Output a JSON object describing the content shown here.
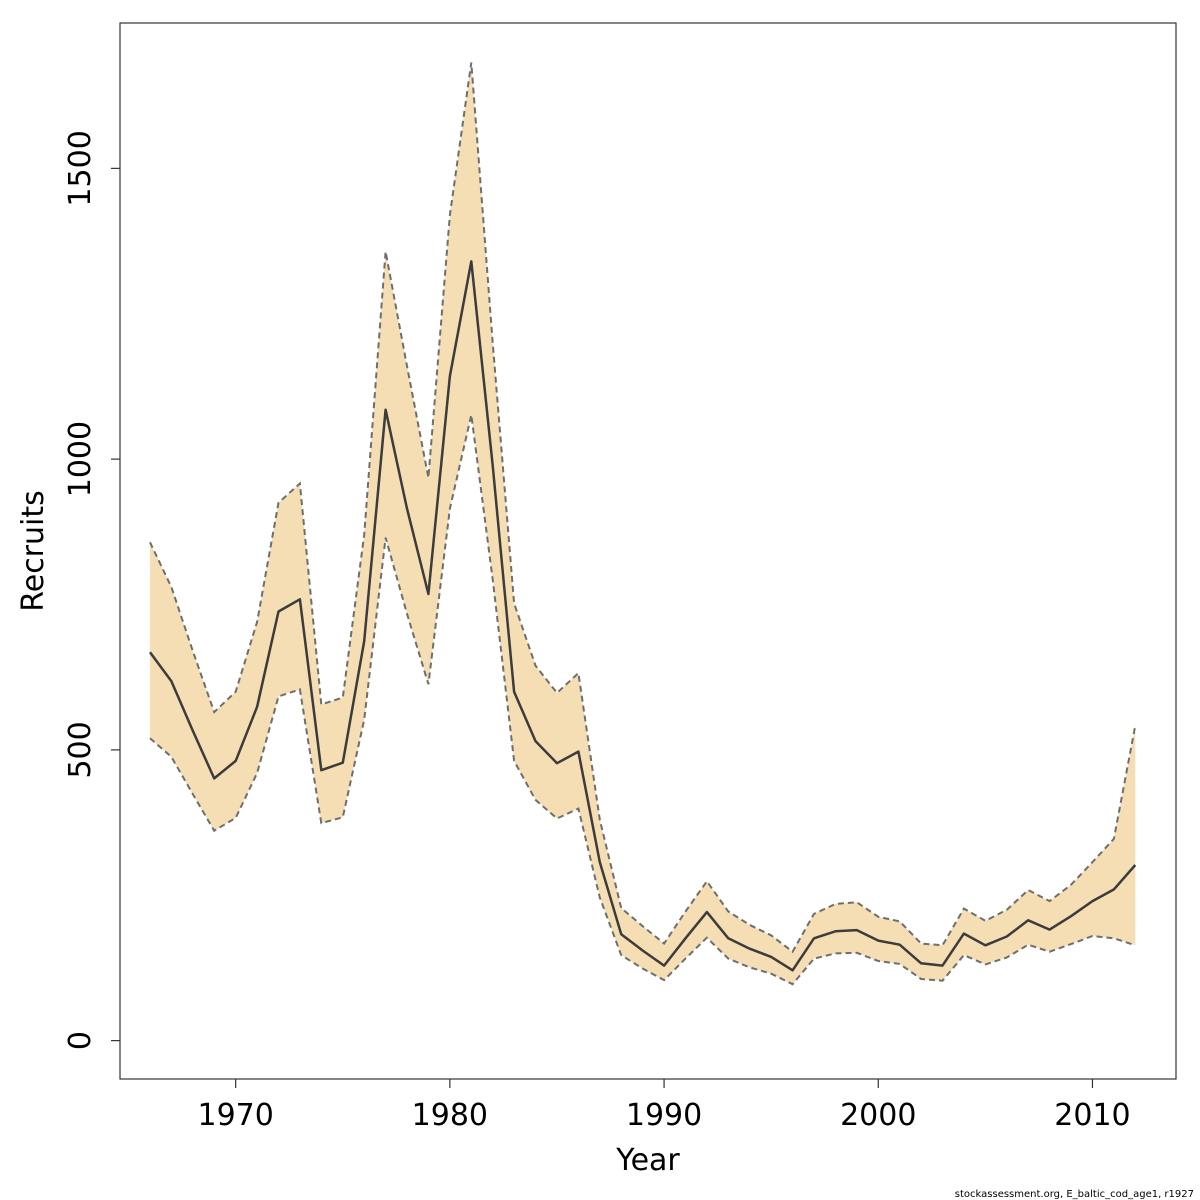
{
  "chart_data": {
    "type": "line",
    "title": "",
    "xlabel": "Year",
    "ylabel": "Recruits",
    "xlim": [
      1964.6,
      2013.9
    ],
    "ylim": [
      -66,
      1750
    ],
    "x_ticks": [
      1970,
      1980,
      1990,
      2000,
      2010
    ],
    "y_ticks": [
      0,
      500,
      1000,
      1500
    ],
    "grid": false,
    "legend": "none",
    "colors": {
      "band_fill": "#f5deb3",
      "band_edge": "#6e6e6e",
      "line": "#3c3c3c",
      "frame": "#333333"
    },
    "x": [
      1966,
      1967,
      1968,
      1969,
      1970,
      1971,
      1972,
      1973,
      1974,
      1975,
      1976,
      1977,
      1978,
      1979,
      1980,
      1981,
      1982,
      1983,
      1984,
      1985,
      1986,
      1987,
      1988,
      1989,
      1990,
      1991,
      1992,
      1993,
      1994,
      1995,
      1996,
      1997,
      1998,
      1999,
      2000,
      2001,
      2002,
      2003,
      2004,
      2005,
      2006,
      2007,
      2008,
      2009,
      2010,
      2011,
      2012
    ],
    "series": [
      {
        "values": [
          668,
          618,
          533,
          451,
          481,
          574,
          738,
          759,
          465,
          478,
          687,
          1085,
          915,
          768,
          1143,
          1340,
          989,
          600,
          515,
          477,
          497,
          307,
          183,
          155,
          129,
          176,
          221,
          176,
          158,
          144,
          121,
          176,
          188,
          190,
          172,
          165,
          133,
          129,
          184,
          164,
          179,
          207,
          191,
          214,
          240,
          260,
          302
        ]
      }
    ],
    "band_upper": [
      857,
      780,
      670,
      565,
      600,
      720,
      925,
      958,
      578,
      590,
      870,
      1357,
      1160,
      968,
      1420,
      1682,
      1200,
      752,
      645,
      598,
      632,
      380,
      228,
      197,
      167,
      222,
      274,
      222,
      199,
      181,
      153,
      218,
      235,
      238,
      213,
      205,
      167,
      164,
      227,
      206,
      225,
      259,
      240,
      268,
      307,
      347,
      542
    ],
    "band_lower": [
      520,
      488,
      424,
      361,
      383,
      460,
      592,
      604,
      374,
      384,
      552,
      865,
      734,
      613,
      915,
      1076,
      793,
      481,
      414,
      382,
      399,
      246,
      147,
      124,
      104,
      141,
      177,
      141,
      126,
      115,
      97,
      141,
      150,
      151,
      137,
      132,
      106,
      103,
      147,
      131,
      143,
      165,
      153,
      166,
      180,
      176,
      164
    ],
    "footer_note": "stockassessment.org, E_baltic_cod_age1, r1927"
  }
}
